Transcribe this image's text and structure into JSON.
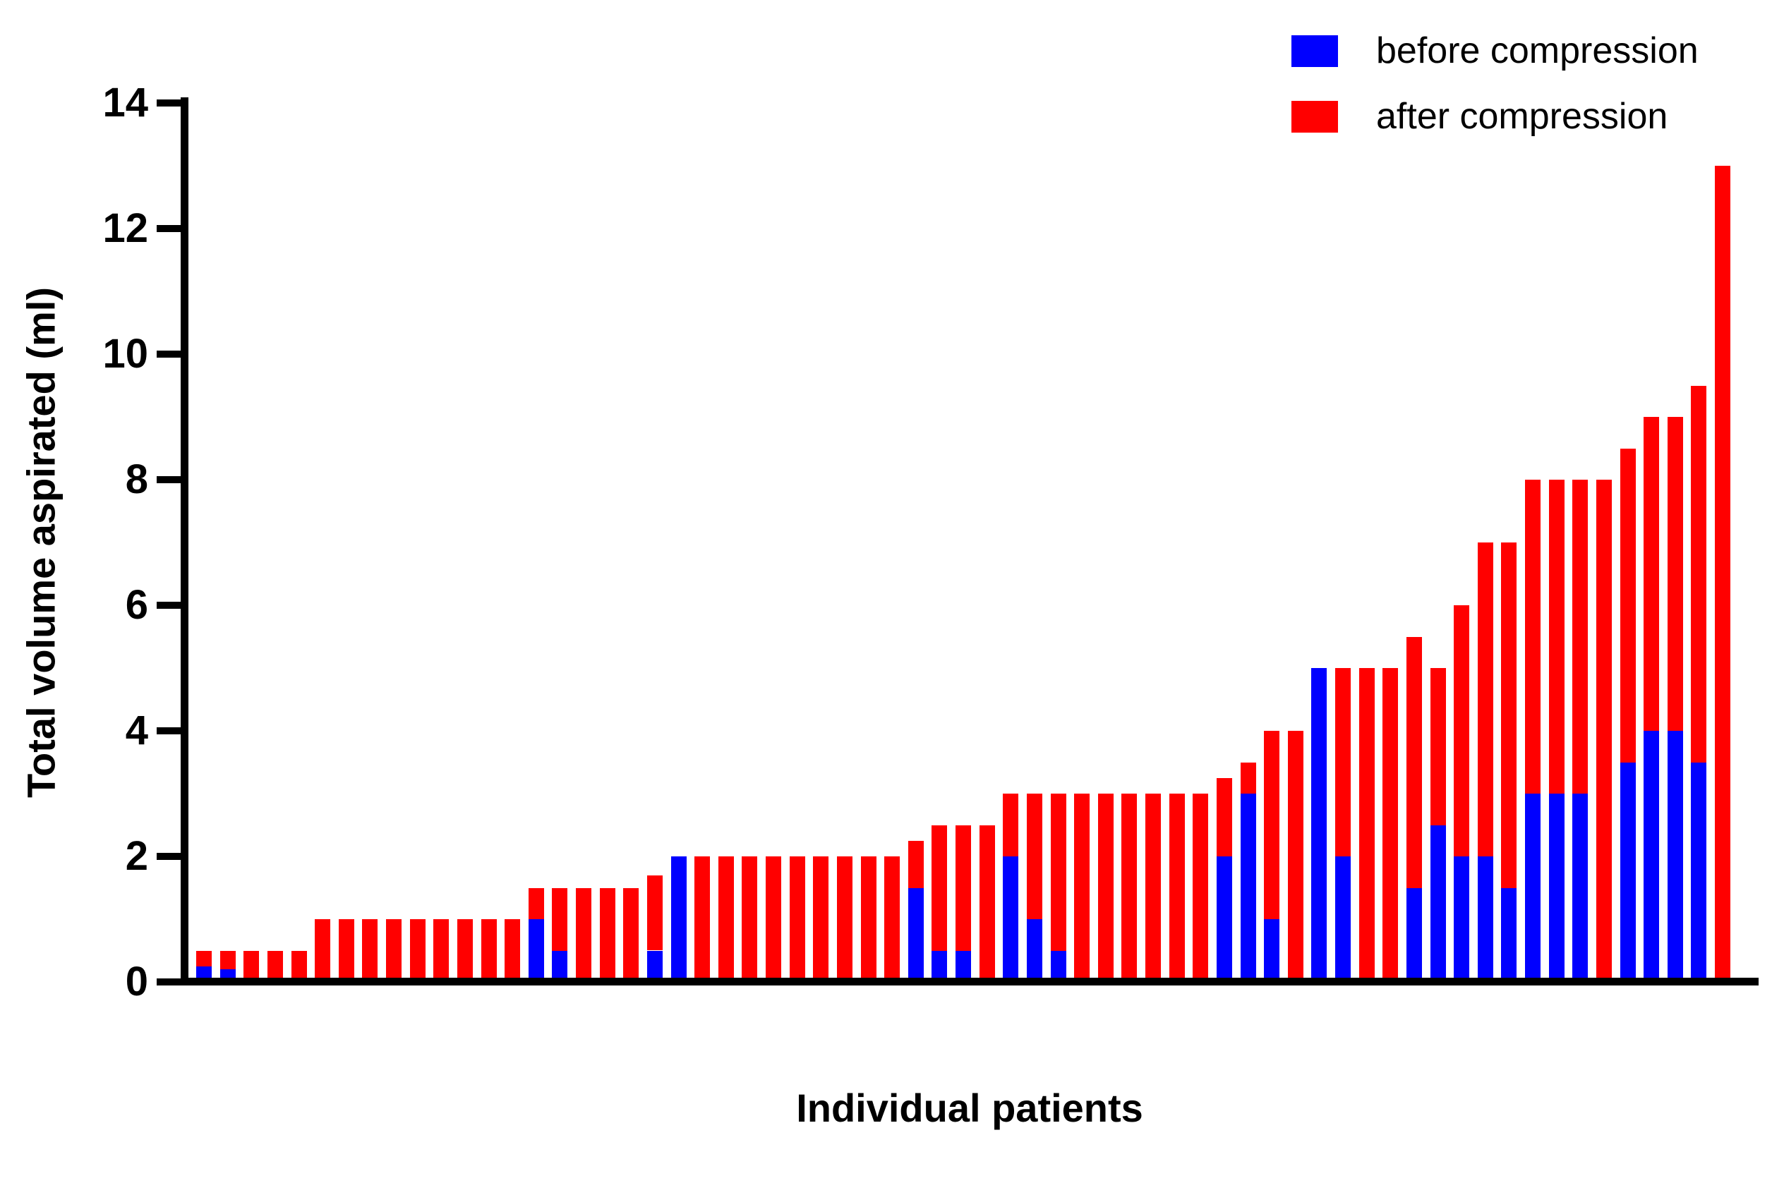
{
  "figure": {
    "background": "#FFFFFF"
  },
  "chart_data": {
    "type": "bar",
    "stacked": true,
    "title": "",
    "xlabel": "Individual patients",
    "ylabel": "Total volume aspirated (ml)",
    "ylim": [
      0,
      14
    ],
    "yticks": [
      0,
      2,
      4,
      6,
      8,
      10,
      12,
      14
    ],
    "x_tick_labels": [],
    "grid": false,
    "legend_position": "top-right",
    "legend": [
      {
        "label": "before compression",
        "color": "#0000FF"
      },
      {
        "label": "after compression",
        "color": "#FF0000"
      }
    ],
    "patients": [
      {
        "before": 0.25,
        "total": 0.5
      },
      {
        "before": 0.2,
        "total": 0.5
      },
      {
        "before": 0,
        "total": 0.5
      },
      {
        "before": 0,
        "total": 0.5
      },
      {
        "before": 0,
        "total": 0.5
      },
      {
        "before": 0,
        "total": 1
      },
      {
        "before": 0,
        "total": 1
      },
      {
        "before": 0,
        "total": 1
      },
      {
        "before": 0,
        "total": 1
      },
      {
        "before": 0,
        "total": 1
      },
      {
        "before": 0,
        "total": 1
      },
      {
        "before": 0,
        "total": 1
      },
      {
        "before": 0,
        "total": 1
      },
      {
        "before": 0,
        "total": 1
      },
      {
        "before": 1,
        "total": 1.5
      },
      {
        "before": 0.5,
        "total": 1.5
      },
      {
        "before": 0,
        "total": 1.5
      },
      {
        "before": 0,
        "total": 1.5
      },
      {
        "before": 0,
        "total": 1.5
      },
      {
        "before": 0.5,
        "total": 1.7
      },
      {
        "before": 2,
        "total": 2
      },
      {
        "before": 0,
        "total": 2
      },
      {
        "before": 0,
        "total": 2
      },
      {
        "before": 0,
        "total": 2
      },
      {
        "before": 0,
        "total": 2
      },
      {
        "before": 0,
        "total": 2
      },
      {
        "before": 0,
        "total": 2
      },
      {
        "before": 0,
        "total": 2
      },
      {
        "before": 0,
        "total": 2
      },
      {
        "before": 0,
        "total": 2
      },
      {
        "before": 1.5,
        "total": 2.25
      },
      {
        "before": 0.5,
        "total": 2.5
      },
      {
        "before": 0.5,
        "total": 2.5
      },
      {
        "before": 0,
        "total": 2.5
      },
      {
        "before": 2,
        "total": 3
      },
      {
        "before": 1,
        "total": 3
      },
      {
        "before": 0.5,
        "total": 3
      },
      {
        "before": 0,
        "total": 3
      },
      {
        "before": 0,
        "total": 3
      },
      {
        "before": 0,
        "total": 3
      },
      {
        "before": 0,
        "total": 3
      },
      {
        "before": 0,
        "total": 3
      },
      {
        "before": 0,
        "total": 3
      },
      {
        "before": 2,
        "total": 3.25
      },
      {
        "before": 3,
        "total": 3.5
      },
      {
        "before": 1,
        "total": 4
      },
      {
        "before": 0,
        "total": 4
      },
      {
        "before": 5,
        "total": 5
      },
      {
        "before": 2,
        "total": 5
      },
      {
        "before": 0,
        "total": 5
      },
      {
        "before": 0,
        "total": 5
      },
      {
        "before": 1.5,
        "total": 5.5
      },
      {
        "before": 2.5,
        "total": 5
      },
      {
        "before": 2,
        "total": 6
      },
      {
        "before": 2,
        "total": 7
      },
      {
        "before": 1.5,
        "total": 7
      },
      {
        "before": 3,
        "total": 8
      },
      {
        "before": 3,
        "total": 8
      },
      {
        "before": 3,
        "total": 8
      },
      {
        "before": 0,
        "total": 8
      },
      {
        "before": 3.5,
        "total": 8.5
      },
      {
        "before": 4,
        "total": 9
      },
      {
        "before": 4,
        "total": 9
      },
      {
        "before": 3.5,
        "total": 9.5
      },
      {
        "before": 0,
        "total": 13
      }
    ]
  }
}
